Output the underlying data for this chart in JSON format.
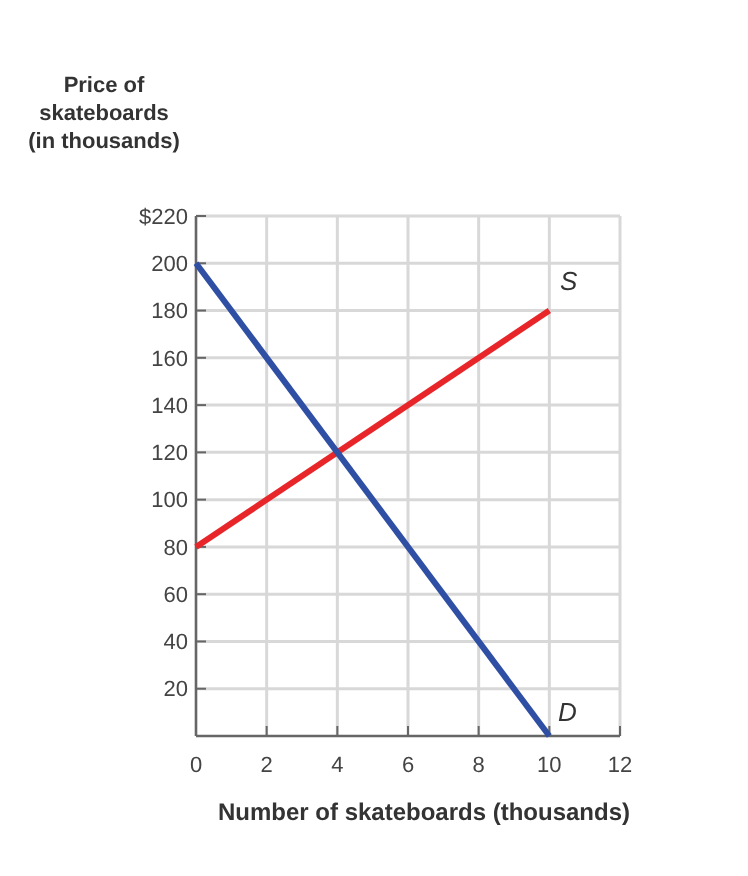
{
  "chart_data": {
    "type": "line",
    "xlabel": "Number of skateboards (thousands)",
    "ylabel": "Price of skateboards (in thousands)",
    "series": [
      {
        "name": "S",
        "color": "#e8262a",
        "values": [
          80,
          180
        ]
      },
      {
        "name": "D",
        "color": "#2e4fa3",
        "values": [
          200,
          0
        ]
      }
    ],
    "x": [
      0,
      10
    ],
    "xlim": [
      0,
      12
    ],
    "xticks": [
      0,
      2,
      4,
      6,
      8,
      10,
      12
    ],
    "ylim": [
      0,
      220
    ],
    "yticks": [
      20,
      40,
      60,
      80,
      100,
      120,
      140,
      160,
      180,
      200,
      {
        "value": 220,
        "label": "$220"
      }
    ],
    "grid": true,
    "legend": false,
    "marker": "none",
    "line_style": "solid"
  }
}
